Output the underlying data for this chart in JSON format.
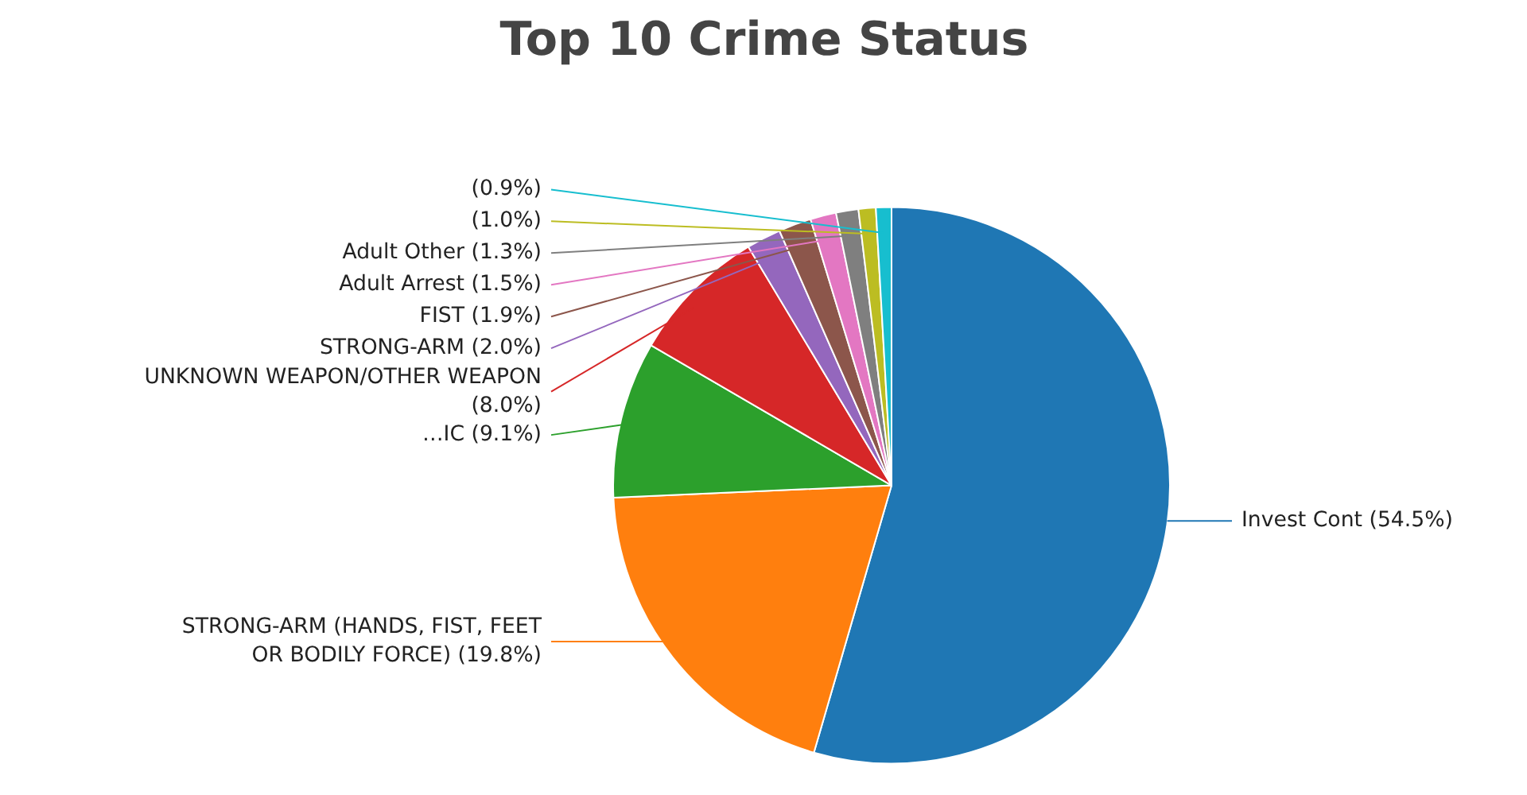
{
  "chart_data": {
    "type": "pie",
    "title": "Top 10 Crime Status",
    "categories": [
      "Invest Cont",
      "STRONG-ARM (HANDS, FIST, FEET OR BODILY FORCE)",
      "…IC",
      "UNKNOWN WEAPON/OTHER WEAPON",
      "STRONG-ARM",
      "FIST",
      "Adult Arrest",
      "Adult Other",
      null,
      null
    ],
    "values": [
      54.5,
      19.8,
      9.1,
      8.0,
      2.0,
      1.9,
      1.5,
      1.3,
      1.0,
      0.9
    ],
    "value_labels": [
      "(54.5%)",
      "(19.8%)",
      "(9.1%)",
      "(8.0%)",
      "(2.0%)",
      "(1.9%)",
      "(1.5%)",
      "(1.3%)",
      "(1.0%)",
      "(0.9%)"
    ],
    "colors": [
      "#1f77b4",
      "#ff7f0e",
      "#2ca02c",
      "#d62728",
      "#9467bd",
      "#8c564b",
      "#e377c2",
      "#7f7f7f",
      "#bcbd22",
      "#17becf"
    ]
  }
}
